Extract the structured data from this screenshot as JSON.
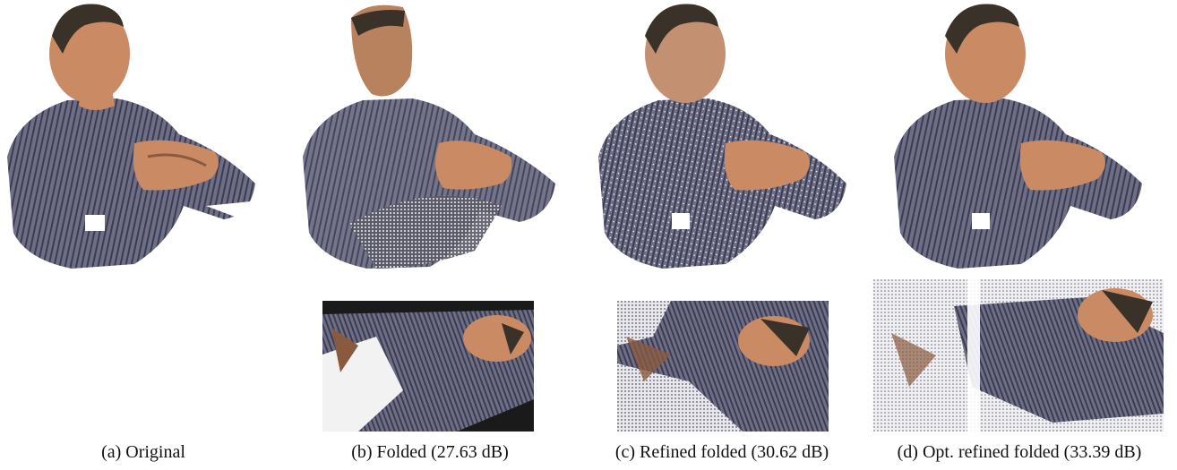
{
  "figure": {
    "panels": [
      {
        "id": "a",
        "caption": "(a) Original"
      },
      {
        "id": "b",
        "caption": "(b) Folded (27.63 dB)"
      },
      {
        "id": "c",
        "caption": "(c) Refined folded (30.62 dB)"
      },
      {
        "id": "d",
        "caption": "(d) Opt. refined folded (33.39 dB)"
      }
    ]
  },
  "colors": {
    "shirt": "#6e6f86",
    "shirt_stripe": "#3b3c52",
    "skin": "#c98a64",
    "skin_dark": "#8a5a40",
    "hair": "#3a3128",
    "background": "#ffffff"
  }
}
